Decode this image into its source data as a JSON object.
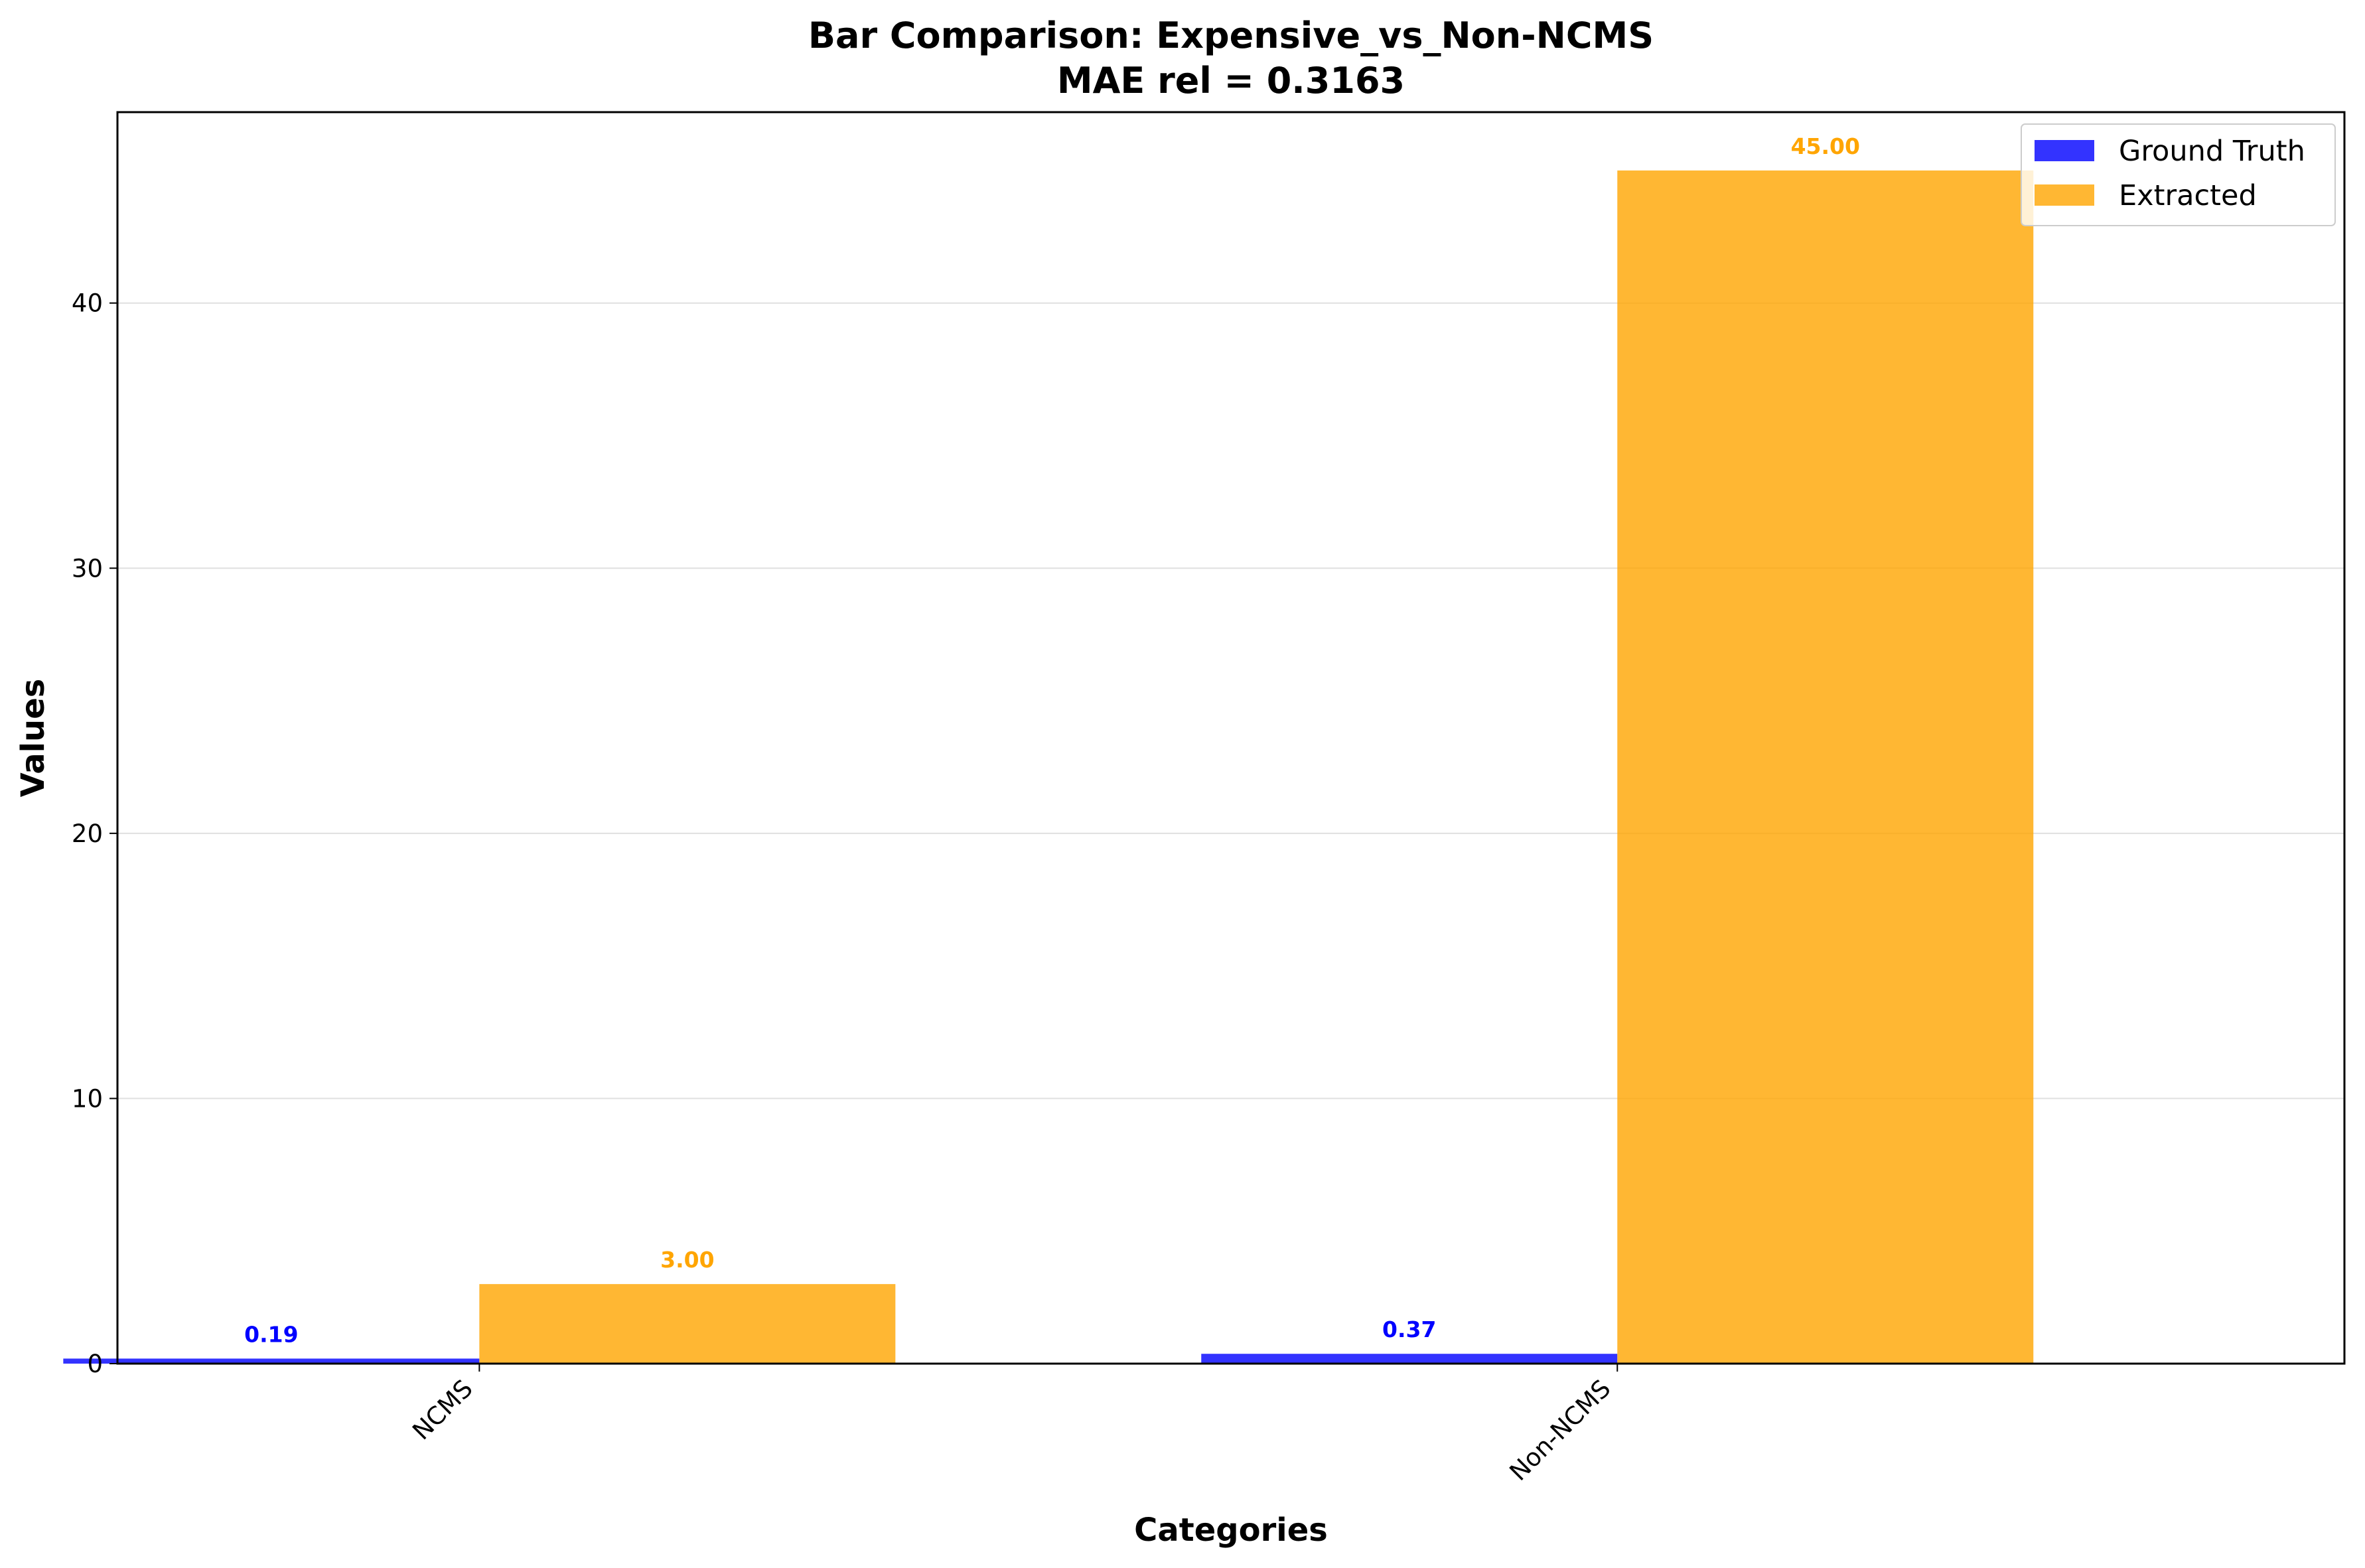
{
  "chart_data": {
    "type": "bar",
    "title": "Bar Comparison: Expensive_vs_Non-NCMS",
    "subtitle": "MAE rel = 0.3163",
    "xlabel": "Categories",
    "ylabel": "Values",
    "categories": [
      "NCMS",
      "Non-NCMS"
    ],
    "series": [
      {
        "name": "Ground Truth",
        "values": [
          0.19,
          0.37
        ],
        "labels": [
          "0.19",
          "0.37"
        ],
        "color": "#0000ff"
      },
      {
        "name": "Extracted",
        "values": [
          3.0,
          45.0
        ],
        "labels": [
          "3.00",
          "45.00"
        ],
        "color": "#ffa500"
      }
    ],
    "ylim": [
      0,
      47.2
    ],
    "yticks": [
      0,
      10,
      20,
      30,
      40
    ],
    "grid": "horizontal",
    "legend_position": "top-right"
  }
}
